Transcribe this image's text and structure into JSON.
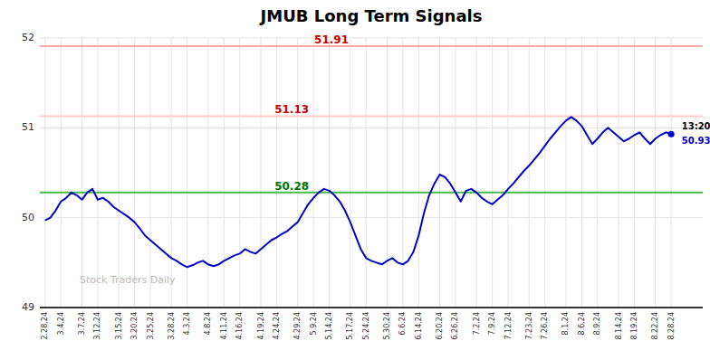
{
  "chart_data": {
    "type": "line",
    "title": "JMUB Long Term Signals",
    "categories": [
      "2.28.24",
      null,
      null,
      "3.4.24",
      null,
      null,
      null,
      "3.7.24",
      null,
      null,
      "3.12.24",
      null,
      null,
      null,
      "3.15.24",
      null,
      null,
      "3.20.24",
      null,
      null,
      "3.25.24",
      null,
      null,
      null,
      "3.28.24",
      null,
      null,
      "4.3.24",
      null,
      null,
      null,
      "4.8.24",
      null,
      null,
      "4.11.24",
      null,
      null,
      "4.16.24",
      null,
      null,
      null,
      "4.19.24",
      null,
      null,
      "4.24.24",
      null,
      null,
      null,
      "4.29.24",
      null,
      null,
      "5.9.24",
      null,
      null,
      "5.14.24",
      null,
      null,
      null,
      "5.17.24",
      null,
      null,
      "5.24.24",
      null,
      null,
      null,
      "5.30.24",
      null,
      null,
      "6.6.24",
      null,
      null,
      "6.14.24",
      null,
      null,
      null,
      "6.20.24",
      null,
      null,
      "6.26.24",
      null,
      null,
      null,
      "7.2.24",
      null,
      null,
      "7.9.24",
      null,
      null,
      "7.12.24",
      null,
      null,
      null,
      "7.23.24",
      null,
      null,
      "7.26.24",
      null,
      null,
      null,
      "8.1.24",
      null,
      null,
      "8.6.24",
      null,
      null,
      "8.9.24",
      null,
      null,
      null,
      "8.14.24",
      null,
      null,
      "8.19.24",
      null,
      null,
      null,
      "8.22.24",
      null,
      null,
      "8.28.24"
    ],
    "values": [
      49.97,
      50.0,
      50.08,
      50.18,
      50.22,
      50.28,
      50.25,
      50.2,
      50.28,
      50.32,
      50.2,
      50.22,
      50.18,
      50.12,
      50.08,
      50.04,
      50.0,
      49.95,
      49.88,
      49.8,
      49.75,
      49.7,
      49.65,
      49.6,
      49.55,
      49.52,
      49.48,
      49.45,
      49.47,
      49.5,
      49.52,
      49.48,
      49.46,
      49.48,
      49.52,
      49.55,
      49.58,
      49.6,
      49.65,
      49.62,
      49.6,
      49.65,
      49.7,
      49.75,
      49.78,
      49.82,
      49.85,
      49.9,
      49.95,
      50.05,
      50.15,
      50.22,
      50.28,
      50.32,
      50.3,
      50.25,
      50.18,
      50.08,
      49.95,
      49.8,
      49.65,
      49.55,
      49.52,
      49.5,
      49.48,
      49.52,
      49.55,
      49.5,
      49.48,
      49.52,
      49.62,
      49.8,
      50.05,
      50.25,
      50.38,
      50.48,
      50.45,
      50.38,
      50.28,
      50.18,
      50.3,
      50.32,
      50.28,
      50.22,
      50.18,
      50.15,
      50.2,
      50.25,
      50.32,
      50.38,
      50.45,
      50.52,
      50.58,
      50.65,
      50.72,
      50.8,
      50.88,
      50.95,
      51.02,
      51.08,
      51.12,
      51.08,
      51.02,
      50.92,
      50.82,
      50.88,
      50.95,
      51.0,
      50.95,
      50.9,
      50.85,
      50.88,
      50.92,
      50.95,
      50.88,
      50.82,
      50.88,
      50.92,
      50.95,
      50.93
    ],
    "color": "#0000cc",
    "ylim": [
      49,
      52
    ],
    "yticks": [
      49,
      50,
      51,
      52
    ],
    "grid": true,
    "hlines": [
      {
        "value": 51.91,
        "label": "51.91",
        "color": "#ffaaaa",
        "label_color": "#cc0000"
      },
      {
        "value": 51.13,
        "label": "51.13",
        "color": "#ffcccc",
        "label_color": "#cc0000"
      },
      {
        "value": 50.28,
        "label": "50.28",
        "color": "#44bb44",
        "label_color": "#007700"
      }
    ],
    "last_point": {
      "time": "13:20",
      "price_label": "50.93",
      "color": "#0000cc"
    },
    "watermark": "Stock Traders Daily",
    "watermark_color": "#bbbbbb"
  }
}
